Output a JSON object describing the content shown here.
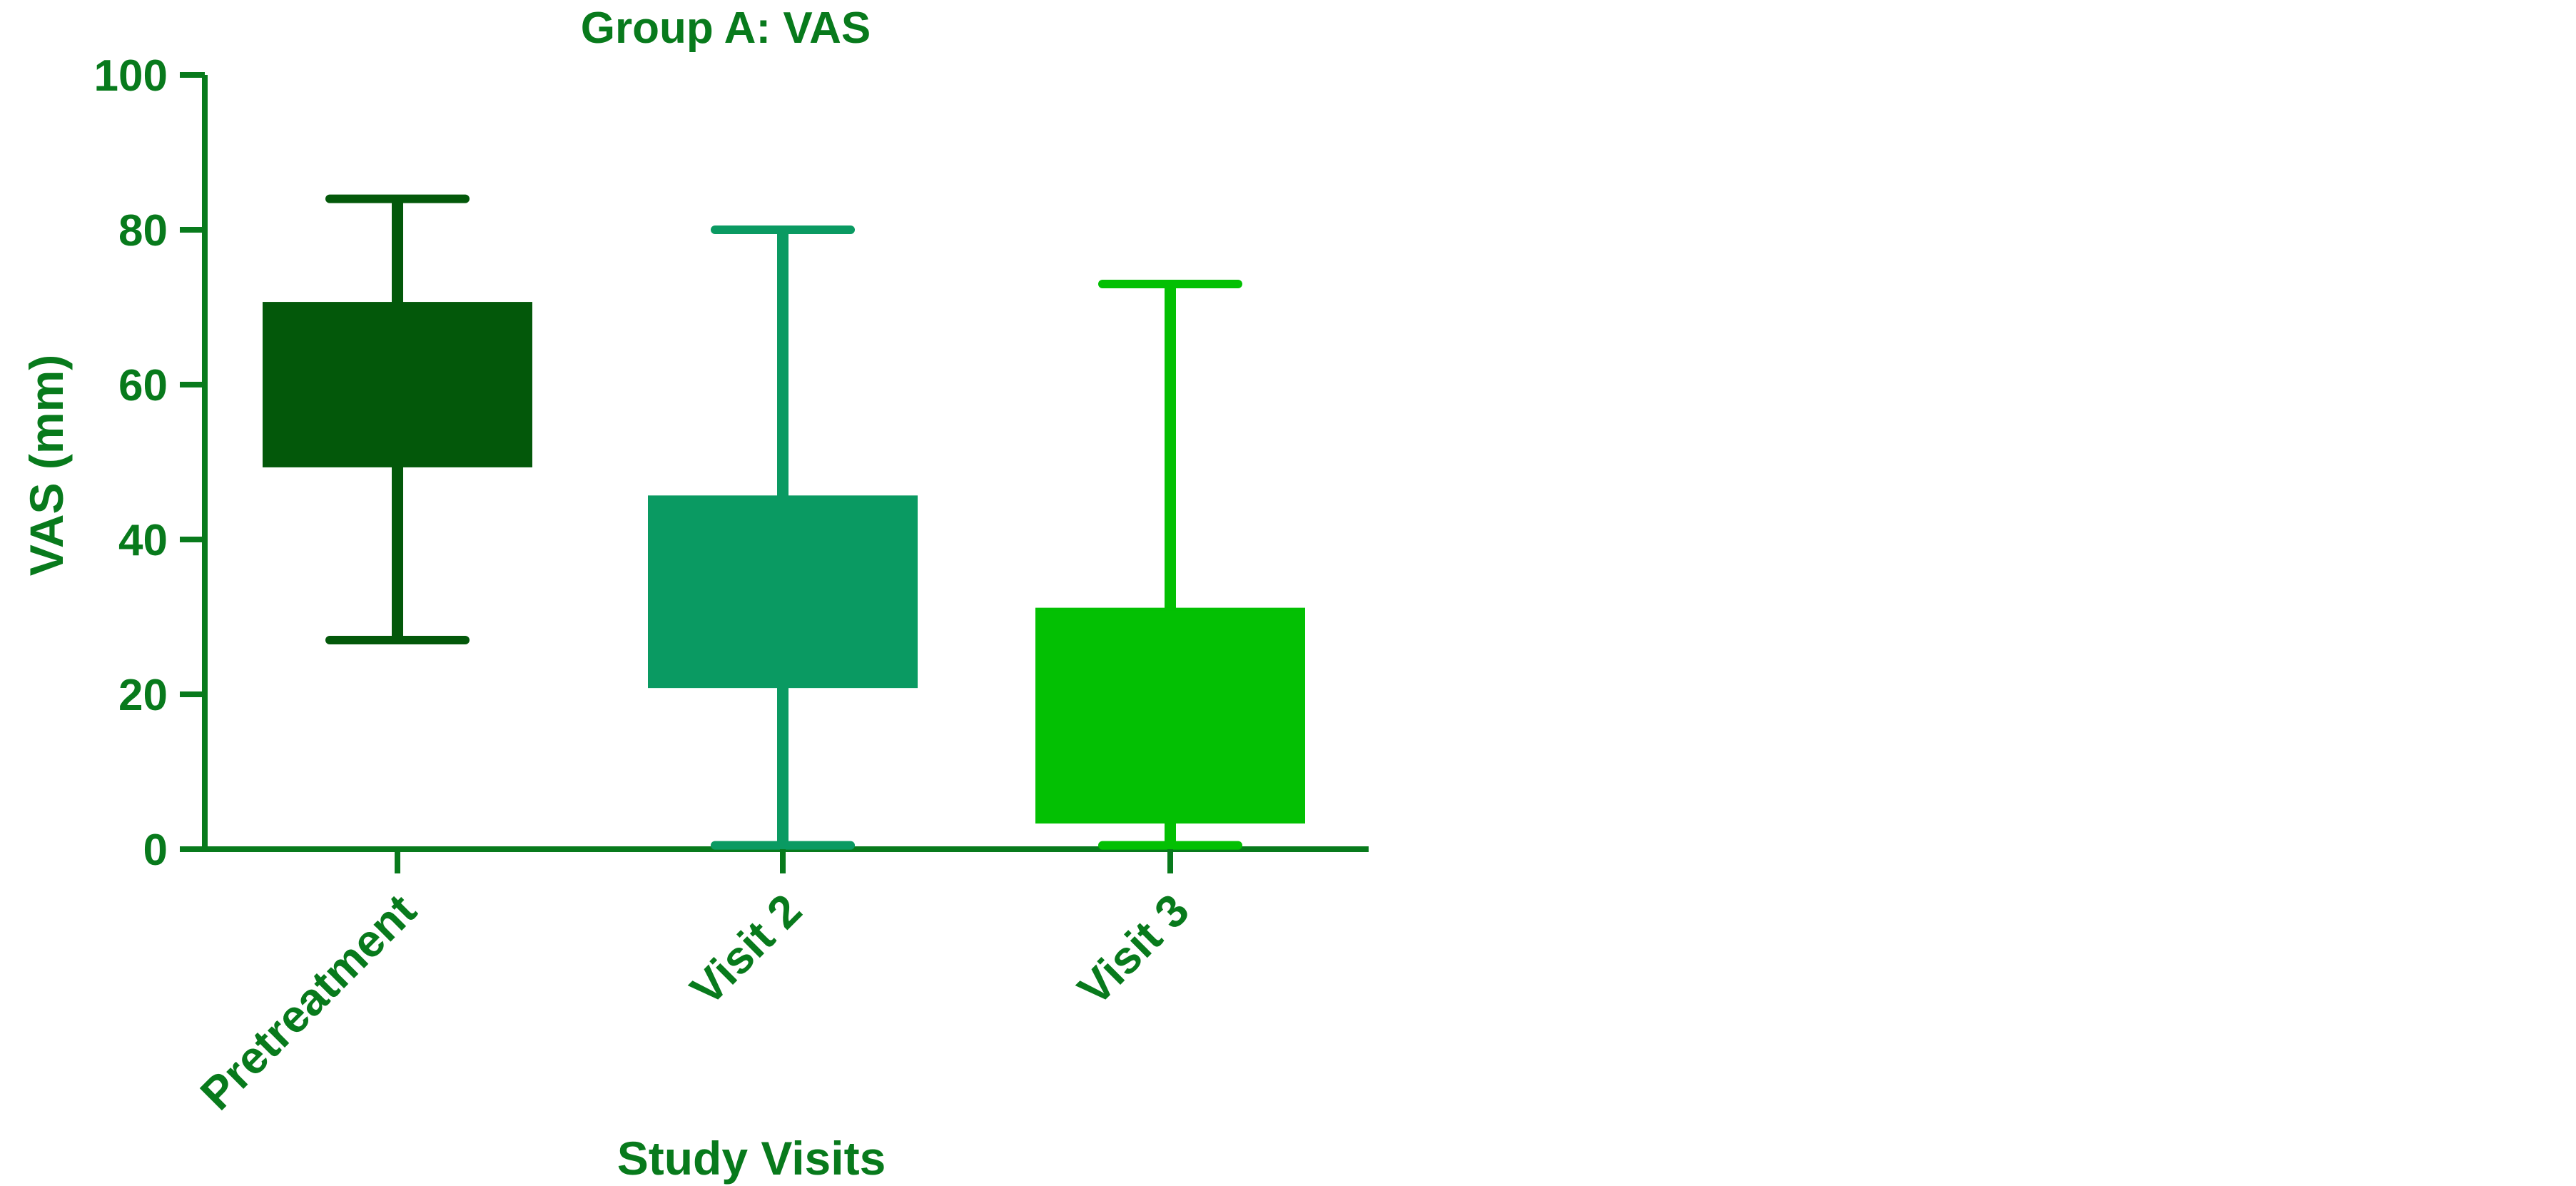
{
  "chart_data": {
    "type": "box",
    "title": "Group A: VAS",
    "xlabel": "Study Visits",
    "ylabel": "VAS (mm)",
    "ylim": [
      0,
      100
    ],
    "yticks": [
      0,
      20,
      40,
      60,
      80,
      100
    ],
    "grid": false,
    "legend": "none",
    "categories": [
      "Pretreatment",
      "Visit 2",
      "Visit 3"
    ],
    "boxes": [
      {
        "category": "Pretreatment",
        "min": 27,
        "q1": 49.5,
        "q3": 70.5,
        "max": 84,
        "color": "#03580a"
      },
      {
        "category": "Visit 2",
        "min": 0.5,
        "q1": 21,
        "q3": 45.5,
        "max": 80,
        "color": "#0a9a62"
      },
      {
        "category": "Visit 3",
        "min": 0.5,
        "q1": 3.5,
        "q3": 31,
        "max": 73,
        "color": "#03c003"
      }
    ],
    "colors": {
      "text": "#087a1c",
      "axis": "#087a1c"
    }
  }
}
